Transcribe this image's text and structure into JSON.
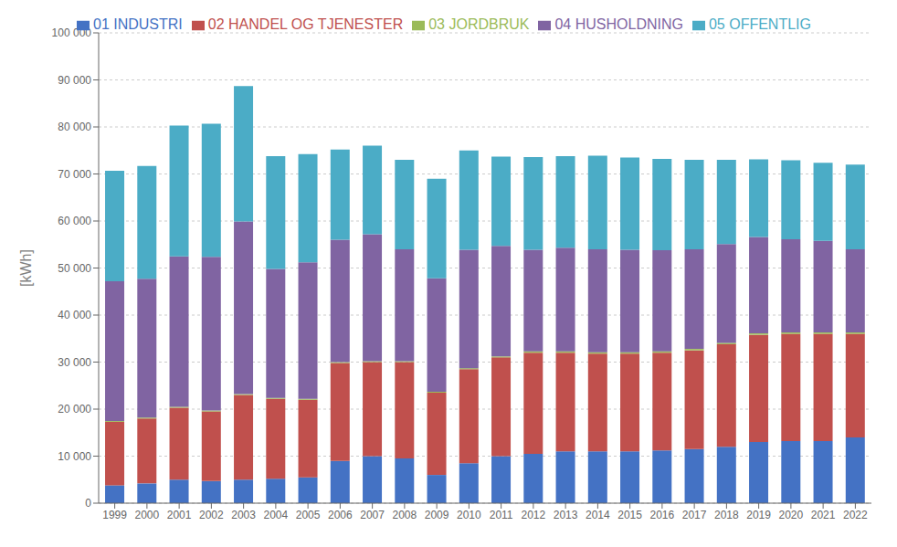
{
  "chart_data": {
    "type": "bar",
    "stacked": true,
    "ylabel": "[kWh]",
    "categories": [
      "1999",
      "2000",
      "2001",
      "2002",
      "2003",
      "2004",
      "2005",
      "2006",
      "2007",
      "2008",
      "2009",
      "2010",
      "2011",
      "2012",
      "2013",
      "2014",
      "2015",
      "2016",
      "2017",
      "2018",
      "2019",
      "2020",
      "2021",
      "2022"
    ],
    "series": [
      {
        "name": "01 INDUSTRI",
        "color": "#4472C4",
        "values": [
          3800,
          4200,
          5000,
          4700,
          5000,
          5200,
          5500,
          9000,
          10000,
          9500,
          6000,
          8500,
          10000,
          10500,
          11000,
          11000,
          11000,
          11200,
          11500,
          12000,
          13000,
          13200,
          13200,
          14000
        ]
      },
      {
        "name": "02 HANDEL OG TJENESTER",
        "color": "#C0504D",
        "values": [
          13500,
          13800,
          15300,
          14800,
          18000,
          17000,
          16500,
          20800,
          20000,
          20500,
          17500,
          20000,
          21000,
          21500,
          21000,
          20800,
          20800,
          20800,
          21000,
          21800,
          22800,
          22800,
          22800,
          22000
        ]
      },
      {
        "name": "03 JORDBRUK",
        "color": "#9BBB59",
        "values": [
          200,
          200,
          200,
          200,
          200,
          200,
          200,
          200,
          200,
          200,
          200,
          200,
          200,
          300,
          300,
          300,
          300,
          300,
          300,
          300,
          300,
          300,
          300,
          300
        ]
      },
      {
        "name": "04 HUSHOLDNING",
        "color": "#8064A2",
        "values": [
          29700,
          29500,
          32000,
          32700,
          36700,
          27400,
          29000,
          26000,
          27000,
          23800,
          24100,
          25200,
          23500,
          21600,
          22000,
          21900,
          21800,
          21500,
          21200,
          21000,
          20500,
          19800,
          19500,
          17700
        ]
      },
      {
        "name": "05 OFFENTLIG",
        "color": "#4BACC6",
        "values": [
          23500,
          24000,
          27800,
          28300,
          28800,
          24000,
          23000,
          19200,
          18800,
          19000,
          21200,
          21100,
          19000,
          19700,
          19500,
          19900,
          19600,
          19400,
          19000,
          17900,
          16500,
          16800,
          16600,
          18000
        ]
      }
    ],
    "ylim": [
      0,
      100000
    ],
    "yticks": [
      0,
      {
        "value": 10000,
        "label": "10 000"
      },
      {
        "value": 20000,
        "label": "20 000"
      },
      {
        "value": 30000,
        "label": "30 000"
      },
      {
        "value": 40000,
        "label": "40 000"
      },
      {
        "value": 50000,
        "label": "50 000"
      },
      {
        "value": 60000,
        "label": "60 000"
      },
      {
        "value": 70000,
        "label": "70 000"
      },
      {
        "value": 80000,
        "label": "80 000"
      },
      {
        "value": 90000,
        "label": "90 000"
      },
      {
        "value": 100000,
        "label": "100 000"
      }
    ],
    "grid": true,
    "legend": "top"
  }
}
